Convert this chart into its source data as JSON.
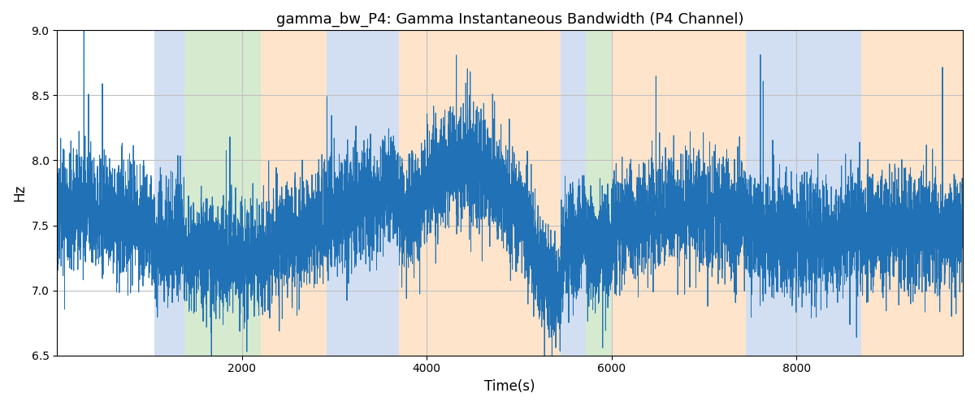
{
  "title": "gamma_bw_P4: Gamma Instantaneous Bandwidth (P4 Channel)",
  "xlabel": "Time(s)",
  "ylabel": "Hz",
  "ylim": [
    6.5,
    9.0
  ],
  "xlim": [
    0,
    9800
  ],
  "line_color": "#2071B5",
  "line_width": 0.7,
  "background_color": "#ffffff",
  "grid_color": "#c0c0c0",
  "xticks": [
    2000,
    4000,
    6000,
    8000
  ],
  "yticks": [
    6.5,
    7.0,
    7.5,
    8.0,
    8.5,
    9.0
  ],
  "bands": [
    {
      "xmin": 1050,
      "xmax": 1380,
      "color": "#AEC6E8",
      "alpha": 0.55
    },
    {
      "xmin": 1380,
      "xmax": 2200,
      "color": "#B5D9A8",
      "alpha": 0.55
    },
    {
      "xmin": 2200,
      "xmax": 2920,
      "color": "#FECFA0",
      "alpha": 0.55
    },
    {
      "xmin": 2920,
      "xmax": 3200,
      "color": "#AEC6E8",
      "alpha": 0.55
    },
    {
      "xmin": 3200,
      "xmax": 3700,
      "color": "#AEC6E8",
      "alpha": 0.55
    },
    {
      "xmin": 3700,
      "xmax": 5450,
      "color": "#FECFA0",
      "alpha": 0.55
    },
    {
      "xmin": 5450,
      "xmax": 5720,
      "color": "#AEC6E8",
      "alpha": 0.55
    },
    {
      "xmin": 5720,
      "xmax": 6000,
      "color": "#B5D9A8",
      "alpha": 0.55
    },
    {
      "xmin": 6000,
      "xmax": 7450,
      "color": "#FECFA0",
      "alpha": 0.55
    },
    {
      "xmin": 7450,
      "xmax": 8700,
      "color": "#AEC6E8",
      "alpha": 0.55
    },
    {
      "xmin": 8700,
      "xmax": 9800,
      "color": "#FECFA0",
      "alpha": 0.55
    }
  ],
  "seed": 1234,
  "n_points": 9800,
  "signal_base": 7.5,
  "signal_noise_std": 0.22,
  "figsize": [
    12.0,
    5.0
  ],
  "dpi": 100
}
